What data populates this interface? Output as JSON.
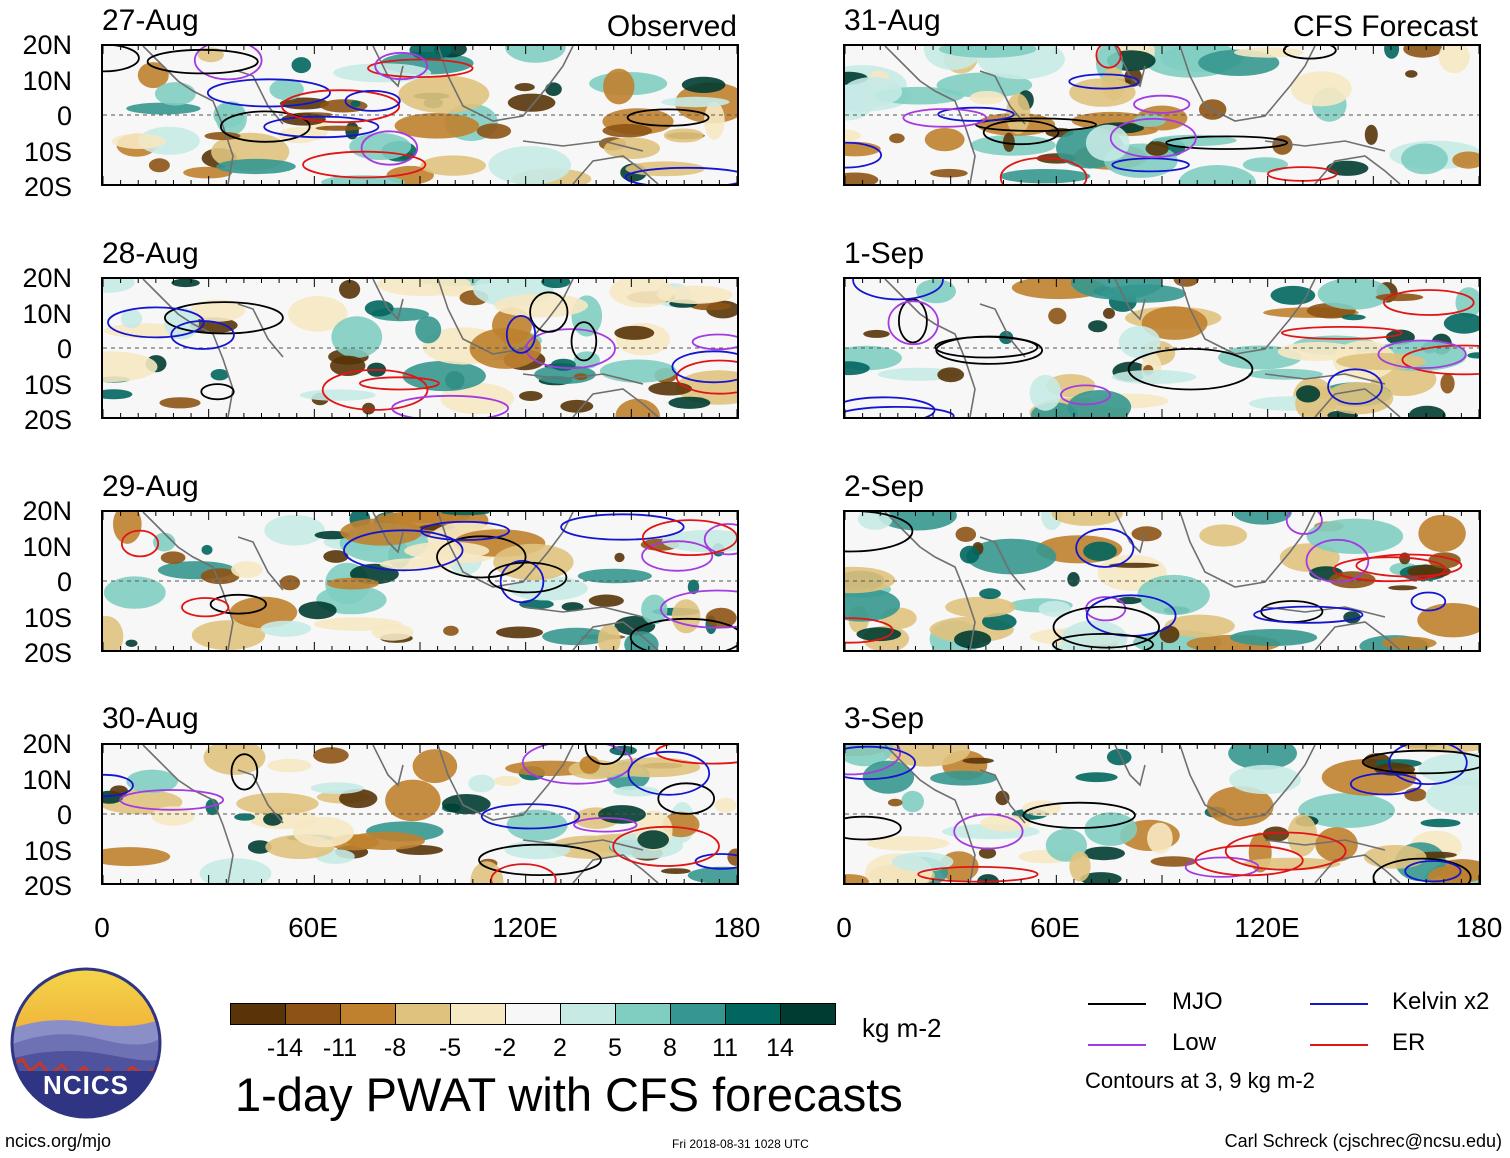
{
  "headers": {
    "observed": "Observed",
    "forecast": "CFS Forecast"
  },
  "panels_observed": [
    "27-Aug",
    "28-Aug",
    "29-Aug",
    "30-Aug"
  ],
  "panels_forecast": [
    "31-Aug",
    "1-Sep",
    "2-Sep",
    "3-Sep"
  ],
  "lat_labels": [
    "20N",
    "10N",
    "0",
    "10S",
    "20S"
  ],
  "lon_labels": [
    "0",
    "60E",
    "120E",
    "180"
  ],
  "colorbar": {
    "colors": [
      "#583408",
      "#8c5314",
      "#bf812d",
      "#dfc27d",
      "#f6e8c3",
      "#f7f7f7",
      "#c7eae5",
      "#80cdc1",
      "#35978f",
      "#01665e",
      "#003c30"
    ],
    "labels": [
      "-14",
      "-11",
      "-8",
      "-5",
      "-2",
      "2",
      "5",
      "8",
      "11",
      "14"
    ],
    "units": "kg m-2"
  },
  "legend": {
    "items": [
      {
        "label": "MJO",
        "color": "#000000"
      },
      {
        "label": "Kelvin x2",
        "color": "#1515d0"
      },
      {
        "label": "Low",
        "color": "#a33be0"
      },
      {
        "label": "ER",
        "color": "#e01515"
      }
    ],
    "note": "Contours at 3, 9 kg m-2"
  },
  "logo": {
    "text": "NCICS"
  },
  "title": "1-day PWAT with CFS forecasts",
  "footer": {
    "url": "ncics.org/mjo",
    "timestamp": "Fri 2018-08-31 1028 UTC",
    "author": "Carl Schreck (cjschrec@ncsu.edu)"
  }
}
